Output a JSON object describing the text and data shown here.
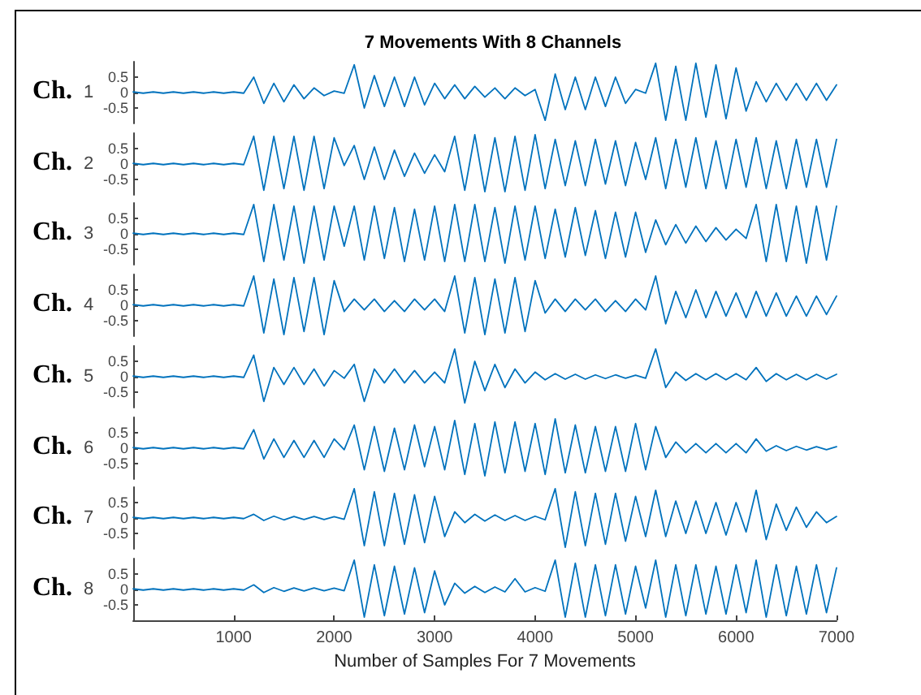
{
  "chart_data": [
    {
      "type": "line",
      "title": "7 Movements With 8 Channels",
      "ylabel": "1",
      "annotations": [
        "Ch."
      ],
      "color": "#0072bd",
      "xlim": [
        0,
        7000
      ],
      "ylim": [
        -1,
        1
      ],
      "yticks": [
        -0.5,
        0,
        0.5
      ],
      "tick_labels": "y",
      "x": [
        0,
        100,
        200,
        300,
        400,
        500,
        600,
        700,
        800,
        900,
        1000,
        1100,
        1200,
        1300,
        1400,
        1500,
        1600,
        1700,
        1800,
        1900,
        2000,
        2100,
        2200,
        2300,
        2400,
        2500,
        2600,
        2700,
        2800,
        2900,
        3000,
        3100,
        3200,
        3300,
        3400,
        3500,
        3600,
        3700,
        3800,
        3900,
        4000,
        4100,
        4200,
        4300,
        4400,
        4500,
        4600,
        4700,
        4800,
        4900,
        5000,
        5100,
        5200,
        5300,
        5400,
        5500,
        5600,
        5700,
        5800,
        5900,
        6000,
        6100,
        6200,
        6300,
        6400,
        6500,
        6600,
        6700,
        6800,
        6900,
        7000
      ],
      "values": [
        0.02,
        -0.02,
        0.02,
        -0.02,
        0.02,
        -0.02,
        0.02,
        -0.02,
        0.02,
        -0.02,
        0.02,
        -0.02,
        0.5,
        -0.35,
        0.3,
        -0.3,
        0.25,
        -0.2,
        0.15,
        -0.1,
        0.05,
        -0.02,
        0.9,
        -0.5,
        0.55,
        -0.45,
        0.5,
        -0.45,
        0.5,
        -0.4,
        0.3,
        -0.2,
        0.25,
        -0.2,
        0.2,
        -0.15,
        0.15,
        -0.2,
        0.15,
        -0.1,
        0.1,
        -0.9,
        0.6,
        -0.55,
        0.5,
        -0.55,
        0.5,
        -0.45,
        0.5,
        -0.35,
        0.1,
        -0.02,
        0.95,
        -0.9,
        0.85,
        -0.9,
        0.95,
        -0.8,
        0.9,
        -0.85,
        0.8,
        -0.6,
        0.35,
        -0.3,
        0.3,
        -0.25,
        0.3,
        -0.25,
        0.3,
        -0.25,
        0.25
      ]
    },
    {
      "type": "line",
      "ylabel": "2",
      "annotations": [
        "Ch."
      ],
      "color": "#0072bd",
      "xlim": [
        0,
        7000
      ],
      "ylim": [
        -1,
        1
      ],
      "yticks": [
        -0.5,
        0,
        0.5
      ],
      "tick_labels": "y",
      "x": [
        0,
        100,
        200,
        300,
        400,
        500,
        600,
        700,
        800,
        900,
        1000,
        1100,
        1200,
        1300,
        1400,
        1500,
        1600,
        1700,
        1800,
        1900,
        2000,
        2100,
        2200,
        2300,
        2400,
        2500,
        2600,
        2700,
        2800,
        2900,
        3000,
        3100,
        3200,
        3300,
        3400,
        3500,
        3600,
        3700,
        3800,
        3900,
        4000,
        4100,
        4200,
        4300,
        4400,
        4500,
        4600,
        4700,
        4800,
        4900,
        5000,
        5100,
        5200,
        5300,
        5400,
        5500,
        5600,
        5700,
        5800,
        5900,
        6000,
        6100,
        6200,
        6300,
        6400,
        6500,
        6600,
        6700,
        6800,
        6900,
        7000
      ],
      "values": [
        0.02,
        -0.02,
        0.02,
        -0.02,
        0.02,
        -0.02,
        0.02,
        -0.02,
        0.02,
        -0.02,
        0.02,
        -0.02,
        0.9,
        -0.85,
        0.9,
        -0.8,
        0.9,
        -0.85,
        0.9,
        -0.8,
        0.85,
        -0.05,
        0.6,
        -0.5,
        0.55,
        -0.5,
        0.45,
        -0.4,
        0.35,
        -0.3,
        0.3,
        -0.25,
        0.9,
        -0.85,
        0.95,
        -0.9,
        0.85,
        -0.9,
        0.9,
        -0.85,
        0.95,
        -0.8,
        0.8,
        -0.7,
        0.75,
        -0.7,
        0.8,
        -0.65,
        0.75,
        -0.7,
        0.7,
        -0.5,
        0.85,
        -0.8,
        0.8,
        -0.75,
        0.85,
        -0.8,
        0.75,
        -0.8,
        0.8,
        -0.75,
        0.85,
        -0.8,
        0.75,
        -0.8,
        0.8,
        -0.75,
        0.8,
        -0.75,
        0.8
      ]
    },
    {
      "type": "line",
      "ylabel": "3",
      "annotations": [
        "Ch."
      ],
      "color": "#0072bd",
      "xlim": [
        0,
        7000
      ],
      "ylim": [
        -1,
        1
      ],
      "yticks": [
        -0.5,
        0,
        0.5
      ],
      "tick_labels": "y",
      "x": [
        0,
        100,
        200,
        300,
        400,
        500,
        600,
        700,
        800,
        900,
        1000,
        1100,
        1200,
        1300,
        1400,
        1500,
        1600,
        1700,
        1800,
        1900,
        2000,
        2100,
        2200,
        2300,
        2400,
        2500,
        2600,
        2700,
        2800,
        2900,
        3000,
        3100,
        3200,
        3300,
        3400,
        3500,
        3600,
        3700,
        3800,
        3900,
        4000,
        4100,
        4200,
        4300,
        4400,
        4500,
        4600,
        4700,
        4800,
        4900,
        5000,
        5100,
        5200,
        5300,
        5400,
        5500,
        5600,
        5700,
        5800,
        5900,
        6000,
        6100,
        6200,
        6300,
        6400,
        6500,
        6600,
        6700,
        6800,
        6900,
        7000
      ],
      "values": [
        0.02,
        -0.02,
        0.02,
        -0.02,
        0.02,
        -0.02,
        0.02,
        -0.02,
        0.02,
        -0.02,
        0.02,
        -0.02,
        0.95,
        -0.9,
        0.95,
        -0.85,
        0.9,
        -0.95,
        0.9,
        -0.85,
        0.9,
        -0.4,
        0.9,
        -0.85,
        0.9,
        -0.8,
        0.85,
        -0.9,
        0.8,
        -0.85,
        0.9,
        -0.9,
        0.95,
        -0.9,
        0.95,
        -0.9,
        0.85,
        -0.95,
        0.9,
        -0.85,
        0.9,
        -0.8,
        0.8,
        -0.75,
        0.85,
        -0.7,
        0.75,
        -0.8,
        0.7,
        -0.75,
        0.7,
        -0.6,
        0.45,
        -0.35,
        0.3,
        -0.3,
        0.25,
        -0.25,
        0.2,
        -0.2,
        0.15,
        -0.15,
        0.95,
        -0.9,
        0.95,
        -0.9,
        0.9,
        -0.95,
        0.9,
        -0.85,
        0.9
      ]
    },
    {
      "type": "line",
      "ylabel": "4",
      "annotations": [
        "Ch."
      ],
      "color": "#0072bd",
      "xlim": [
        0,
        7000
      ],
      "ylim": [
        -1,
        1
      ],
      "yticks": [
        -0.5,
        0,
        0.5
      ],
      "tick_labels": "y",
      "x": [
        0,
        100,
        200,
        300,
        400,
        500,
        600,
        700,
        800,
        900,
        1000,
        1100,
        1200,
        1300,
        1400,
        1500,
        1600,
        1700,
        1800,
        1900,
        2000,
        2100,
        2200,
        2300,
        2400,
        2500,
        2600,
        2700,
        2800,
        2900,
        3000,
        3100,
        3200,
        3300,
        3400,
        3500,
        3600,
        3700,
        3800,
        3900,
        4000,
        4100,
        4200,
        4300,
        4400,
        4500,
        4600,
        4700,
        4800,
        4900,
        5000,
        5100,
        5200,
        5300,
        5400,
        5500,
        5600,
        5700,
        5800,
        5900,
        6000,
        6100,
        6200,
        6300,
        6400,
        6500,
        6600,
        6700,
        6800,
        6900,
        7000
      ],
      "values": [
        0.02,
        -0.02,
        0.02,
        -0.02,
        0.02,
        -0.02,
        0.02,
        -0.02,
        0.02,
        -0.02,
        0.02,
        -0.02,
        0.95,
        -0.9,
        0.85,
        -0.95,
        0.9,
        -0.85,
        0.9,
        -0.95,
        0.8,
        -0.2,
        0.2,
        -0.15,
        0.2,
        -0.2,
        0.15,
        -0.2,
        0.2,
        -0.15,
        0.2,
        -0.2,
        0.95,
        -0.9,
        0.9,
        -0.95,
        0.85,
        -0.9,
        0.9,
        -0.85,
        0.8,
        -0.25,
        0.2,
        -0.2,
        0.2,
        -0.15,
        0.2,
        -0.2,
        0.15,
        -0.2,
        0.2,
        -0.15,
        0.95,
        -0.6,
        0.45,
        -0.4,
        0.5,
        -0.4,
        0.45,
        -0.35,
        0.4,
        -0.4,
        0.45,
        -0.35,
        0.4,
        -0.35,
        0.3,
        -0.35,
        0.3,
        -0.3,
        0.3
      ]
    },
    {
      "type": "line",
      "ylabel": "5",
      "annotations": [
        "Ch."
      ],
      "color": "#0072bd",
      "xlim": [
        0,
        7000
      ],
      "ylim": [
        -1,
        1
      ],
      "yticks": [
        -0.5,
        0,
        0.5
      ],
      "tick_labels": "y",
      "x": [
        0,
        100,
        200,
        300,
        400,
        500,
        600,
        700,
        800,
        900,
        1000,
        1100,
        1200,
        1300,
        1400,
        1500,
        1600,
        1700,
        1800,
        1900,
        2000,
        2100,
        2200,
        2300,
        2400,
        2500,
        2600,
        2700,
        2800,
        2900,
        3000,
        3100,
        3200,
        3300,
        3400,
        3500,
        3600,
        3700,
        3800,
        3900,
        4000,
        4100,
        4200,
        4300,
        4400,
        4500,
        4600,
        4700,
        4800,
        4900,
        5000,
        5100,
        5200,
        5300,
        5400,
        5500,
        5600,
        5700,
        5800,
        5900,
        6000,
        6100,
        6200,
        6300,
        6400,
        6500,
        6600,
        6700,
        6800,
        6900,
        7000
      ],
      "values": [
        0.02,
        -0.02,
        0.02,
        -0.02,
        0.02,
        -0.02,
        0.02,
        -0.02,
        0.02,
        -0.02,
        0.02,
        -0.02,
        0.7,
        -0.8,
        0.3,
        -0.25,
        0.3,
        -0.25,
        0.25,
        -0.3,
        0.2,
        -0.05,
        0.4,
        -0.8,
        0.25,
        -0.2,
        0.25,
        -0.2,
        0.2,
        -0.2,
        0.15,
        -0.2,
        0.9,
        -0.85,
        0.5,
        -0.45,
        0.4,
        -0.35,
        0.25,
        -0.2,
        0.15,
        -0.1,
        0.1,
        -0.08,
        0.08,
        -0.08,
        0.06,
        -0.06,
        0.06,
        -0.05,
        0.05,
        -0.05,
        0.9,
        -0.35,
        0.15,
        -0.12,
        0.1,
        -0.1,
        0.1,
        -0.1,
        0.1,
        -0.1,
        0.3,
        -0.15,
        0.1,
        -0.1,
        0.08,
        -0.1,
        0.08,
        -0.08,
        0.08
      ]
    },
    {
      "type": "line",
      "ylabel": "6",
      "annotations": [
        "Ch."
      ],
      "color": "#0072bd",
      "xlim": [
        0,
        7000
      ],
      "ylim": [
        -1,
        1
      ],
      "yticks": [
        -0.5,
        0,
        0.5
      ],
      "tick_labels": "y",
      "x": [
        0,
        100,
        200,
        300,
        400,
        500,
        600,
        700,
        800,
        900,
        1000,
        1100,
        1200,
        1300,
        1400,
        1500,
        1600,
        1700,
        1800,
        1900,
        2000,
        2100,
        2200,
        2300,
        2400,
        2500,
        2600,
        2700,
        2800,
        2900,
        3000,
        3100,
        3200,
        3300,
        3400,
        3500,
        3600,
        3700,
        3800,
        3900,
        4000,
        4100,
        4200,
        4300,
        4400,
        4500,
        4600,
        4700,
        4800,
        4900,
        5000,
        5100,
        5200,
        5300,
        5400,
        5500,
        5600,
        5700,
        5800,
        5900,
        6000,
        6100,
        6200,
        6300,
        6400,
        6500,
        6600,
        6700,
        6800,
        6900,
        7000
      ],
      "values": [
        0.02,
        -0.02,
        0.02,
        -0.02,
        0.02,
        -0.02,
        0.02,
        -0.02,
        0.02,
        -0.02,
        0.02,
        -0.02,
        0.6,
        -0.35,
        0.3,
        -0.3,
        0.25,
        -0.3,
        0.25,
        -0.3,
        0.3,
        -0.05,
        0.75,
        -0.7,
        0.7,
        -0.75,
        0.65,
        -0.7,
        0.75,
        -0.6,
        0.7,
        -0.7,
        0.9,
        -0.85,
        0.8,
        -0.9,
        0.85,
        -0.8,
        0.85,
        -0.75,
        0.8,
        -0.85,
        0.95,
        -0.8,
        0.75,
        -0.8,
        0.7,
        -0.75,
        0.7,
        -0.75,
        0.8,
        -0.7,
        0.7,
        -0.3,
        0.2,
        -0.15,
        0.15,
        -0.15,
        0.15,
        -0.15,
        0.15,
        -0.15,
        0.3,
        -0.1,
        0.08,
        -0.08,
        0.06,
        -0.06,
        0.05,
        -0.05,
        0.05
      ]
    },
    {
      "type": "line",
      "ylabel": "7",
      "annotations": [
        "Ch."
      ],
      "color": "#0072bd",
      "xlim": [
        0,
        7000
      ],
      "ylim": [
        -1,
        1
      ],
      "yticks": [
        -0.5,
        0,
        0.5
      ],
      "tick_labels": "y",
      "x": [
        0,
        100,
        200,
        300,
        400,
        500,
        600,
        700,
        800,
        900,
        1000,
        1100,
        1200,
        1300,
        1400,
        1500,
        1600,
        1700,
        1800,
        1900,
        2000,
        2100,
        2200,
        2300,
        2400,
        2500,
        2600,
        2700,
        2800,
        2900,
        3000,
        3100,
        3200,
        3300,
        3400,
        3500,
        3600,
        3700,
        3800,
        3900,
        4000,
        4100,
        4200,
        4300,
        4400,
        4500,
        4600,
        4700,
        4800,
        4900,
        5000,
        5100,
        5200,
        5300,
        5400,
        5500,
        5600,
        5700,
        5800,
        5900,
        6000,
        6100,
        6200,
        6300,
        6400,
        6500,
        6600,
        6700,
        6800,
        6900,
        7000
      ],
      "values": [
        0.02,
        -0.02,
        0.02,
        -0.02,
        0.02,
        -0.02,
        0.02,
        -0.02,
        0.02,
        -0.02,
        0.02,
        -0.02,
        0.12,
        -0.08,
        0.06,
        -0.06,
        0.05,
        -0.05,
        0.05,
        -0.05,
        0.04,
        -0.04,
        0.95,
        -0.9,
        0.85,
        -0.9,
        0.8,
        -0.85,
        0.75,
        -0.8,
        0.7,
        -0.6,
        0.2,
        -0.15,
        0.12,
        -0.1,
        0.1,
        -0.08,
        0.08,
        -0.08,
        0.06,
        -0.06,
        0.95,
        -0.95,
        0.85,
        -0.9,
        0.8,
        -0.85,
        0.8,
        -0.75,
        0.7,
        -0.6,
        0.9,
        -0.6,
        0.55,
        -0.5,
        0.55,
        -0.5,
        0.5,
        -0.55,
        0.5,
        -0.45,
        0.9,
        -0.7,
        0.45,
        -0.4,
        0.35,
        -0.3,
        0.2,
        -0.15,
        0.05
      ]
    },
    {
      "type": "line",
      "ylabel": "8",
      "xlabel": "Number of Samples For 7 Movements",
      "annotations": [
        "Ch."
      ],
      "color": "#0072bd",
      "xlim": [
        0,
        7000
      ],
      "ylim": [
        -1,
        1
      ],
      "yticks": [
        -0.5,
        0,
        0.5
      ],
      "xticks": [
        1000,
        2000,
        3000,
        4000,
        5000,
        6000,
        7000
      ],
      "x": [
        0,
        100,
        200,
        300,
        400,
        500,
        600,
        700,
        800,
        900,
        1000,
        1100,
        1200,
        1300,
        1400,
        1500,
        1600,
        1700,
        1800,
        1900,
        2000,
        2100,
        2200,
        2300,
        2400,
        2500,
        2600,
        2700,
        2800,
        2900,
        3000,
        3100,
        3200,
        3300,
        3400,
        3500,
        3600,
        3700,
        3800,
        3900,
        4000,
        4100,
        4200,
        4300,
        4400,
        4500,
        4600,
        4700,
        4800,
        4900,
        5000,
        5100,
        5200,
        5300,
        5400,
        5500,
        5600,
        5700,
        5800,
        5900,
        6000,
        6100,
        6200,
        6300,
        6400,
        6500,
        6600,
        6700,
        6800,
        6900,
        7000
      ],
      "values": [
        0.02,
        -0.02,
        0.02,
        -0.02,
        0.02,
        -0.02,
        0.02,
        -0.02,
        0.02,
        -0.02,
        0.02,
        -0.02,
        0.15,
        -0.1,
        0.06,
        -0.06,
        0.05,
        -0.05,
        0.05,
        -0.04,
        0.04,
        -0.04,
        0.95,
        -0.9,
        0.8,
        -0.85,
        0.75,
        -0.8,
        0.7,
        -0.75,
        0.6,
        -0.5,
        0.2,
        -0.12,
        0.1,
        -0.1,
        0.08,
        -0.08,
        0.35,
        -0.08,
        0.06,
        -0.06,
        0.95,
        -0.9,
        0.85,
        -0.9,
        0.8,
        -0.85,
        0.8,
        -0.8,
        0.75,
        -0.6,
        0.95,
        -0.9,
        0.8,
        -0.85,
        0.8,
        -0.8,
        0.75,
        -0.8,
        0.8,
        -0.75,
        0.95,
        -0.9,
        0.8,
        -0.85,
        0.75,
        -0.8,
        0.8,
        -0.75,
        0.7
      ]
    }
  ]
}
